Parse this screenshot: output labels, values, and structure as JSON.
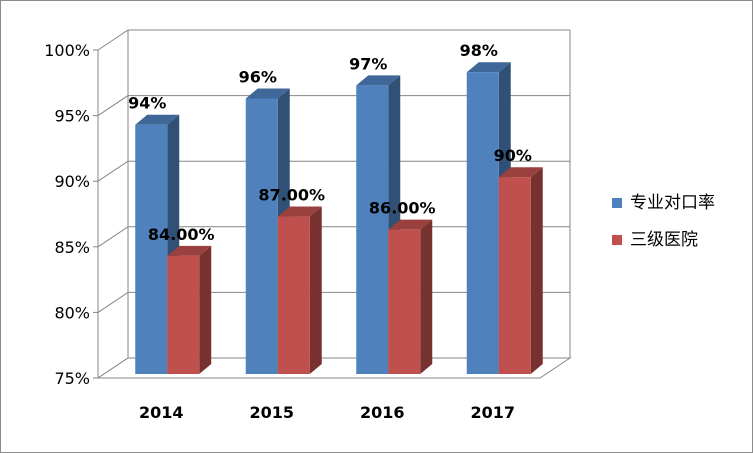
{
  "chart_data": {
    "type": "bar",
    "categories": [
      "2014",
      "2015",
      "2016",
      "2017"
    ],
    "series": [
      {
        "name": "专业对口率",
        "values": [
          94,
          96,
          97,
          98
        ],
        "labels": [
          "94%",
          "96%",
          "97%",
          "98%"
        ],
        "color": "#4f81bd"
      },
      {
        "name": "三级医院",
        "values": [
          84,
          87,
          86,
          90
        ],
        "labels": [
          "84.00%",
          "87.00%",
          "86.00%",
          "90%"
        ],
        "color": "#c0504d"
      }
    ],
    "y_ticks": [
      "75%",
      "80%",
      "85%",
      "90%",
      "95%",
      "100%"
    ],
    "ylim": [
      75,
      100
    ],
    "grid": true,
    "legend_position": "right",
    "style": "3d-clustered-column"
  }
}
